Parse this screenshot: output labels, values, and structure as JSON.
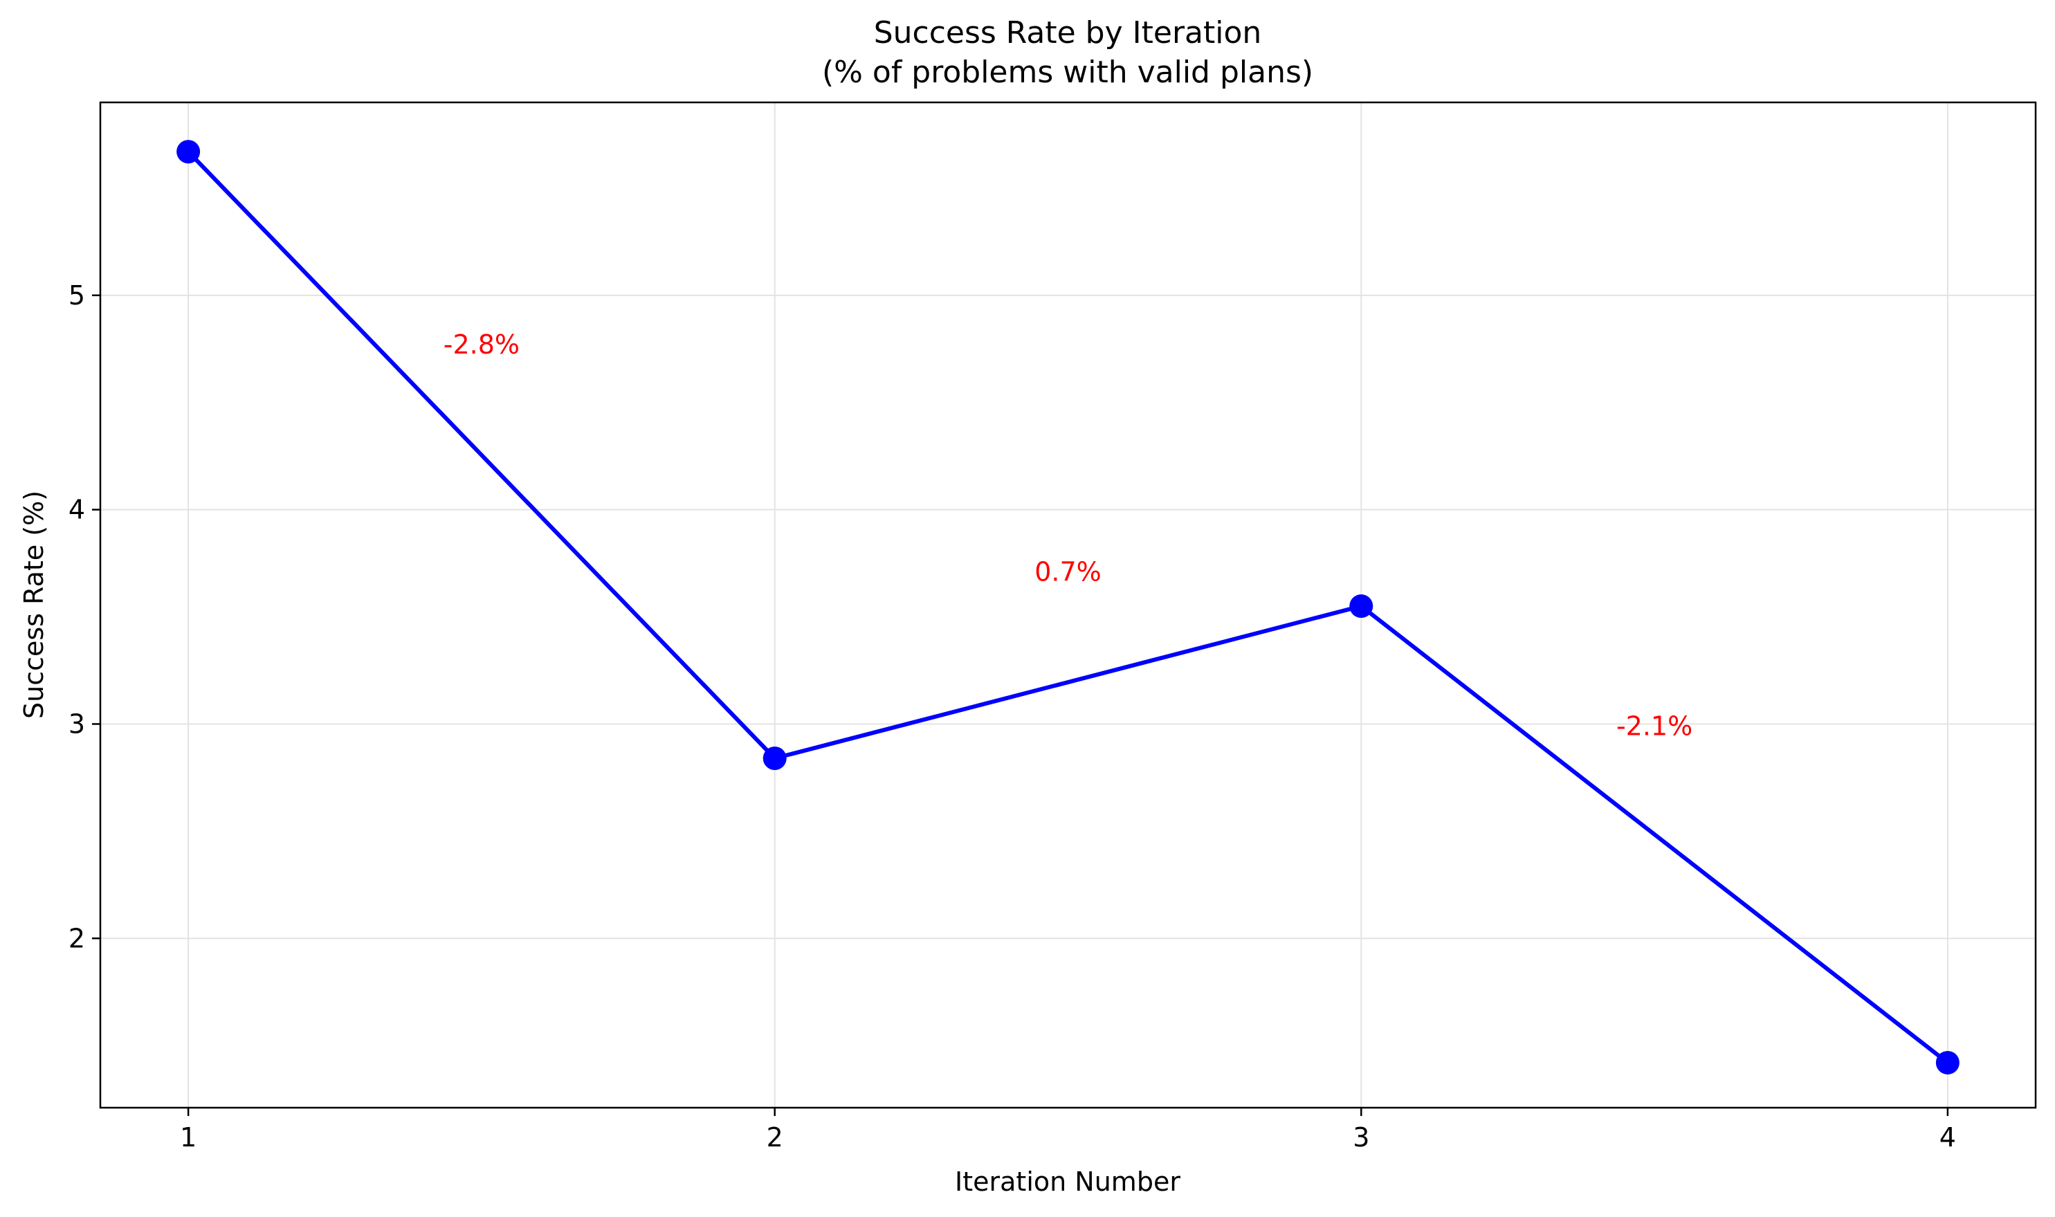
{
  "chart_data": {
    "type": "line",
    "title": "Success Rate by Iteration",
    "subtitle": "(% of problems with valid plans)",
    "xlabel": "Iteration Number",
    "ylabel": "Success Rate (%)",
    "x": [
      1,
      2,
      3,
      4
    ],
    "xlim": [
      0.85,
      4.15
    ],
    "ylim": [
      1.21,
      5.9
    ],
    "xticks": [
      1,
      2,
      3,
      4
    ],
    "yticks": [
      2,
      3,
      4,
      5
    ],
    "grid": true,
    "series": [
      {
        "values": [
          5.67,
          2.84,
          3.55,
          1.42
        ],
        "color": "#0000ff",
        "marker": "circle"
      }
    ],
    "annotations": [
      {
        "text": "-2.8%",
        "x": 1.5,
        "y": 4.77,
        "color": "#ff0000"
      },
      {
        "text": "0.7%",
        "x": 2.5,
        "y": 3.71,
        "color": "#ff0000"
      },
      {
        "text": "-2.1%",
        "x": 3.5,
        "y": 2.99,
        "color": "#ff0000"
      }
    ]
  }
}
